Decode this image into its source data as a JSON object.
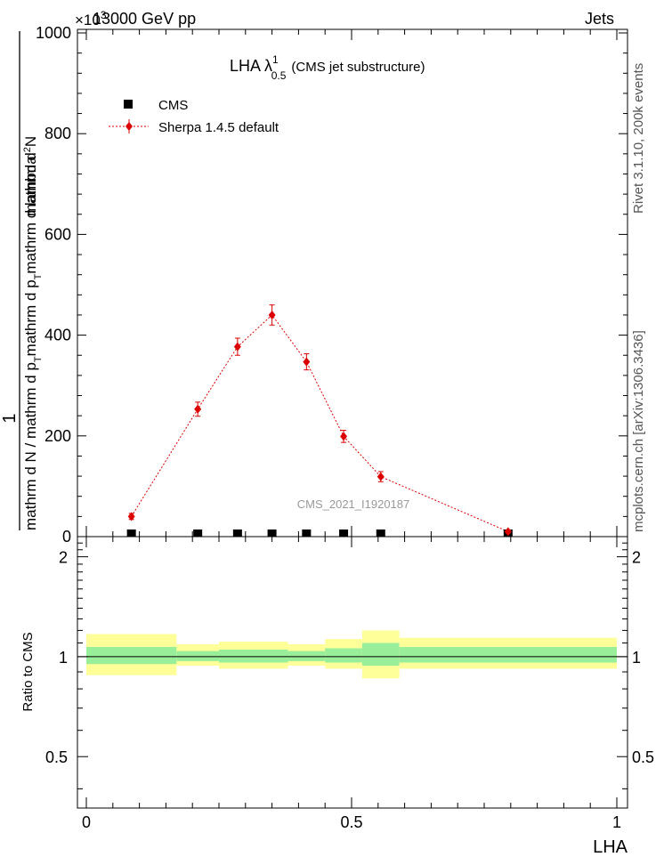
{
  "header": {
    "energy_label": "13000 GeV pp",
    "process_label": "Jets",
    "exponent_label": "×10",
    "exponent_power": "3"
  },
  "side_labels": {
    "rivet": "Rivet 3.1.10,  200k events",
    "mcplots": "mcplots.cern.ch [arXiv:1306.3436]"
  },
  "watermark": "CMS_2021_I1920187",
  "chart_data": [
    {
      "type": "scatter",
      "title_main": "LHA λ",
      "title_sup": "1",
      "title_sub": "0.5",
      "title_suffix": "(CMS jet substructure)",
      "ylabel_num": "1",
      "ylabel_den": "mathrm d N / mathrm d p_T mathrm d p_T mathrm d lambda",
      "ylabel_top": "mathrm d²N",
      "ylabel_den_text": "mathrm d N / mathrm d p",
      "ylabel_den_sub1": "T",
      "ylabel_den_mid": "mathrm d p",
      "ylabel_den_sub2": "T",
      "ylabel_den_end": "mathrm d lambda",
      "ylim": [
        0,
        1000
      ],
      "yticks": [
        0,
        200,
        400,
        600,
        800,
        1000
      ],
      "xlim": [
        0,
        1
      ],
      "legend": [
        {
          "label": "CMS",
          "color": "#000000",
          "marker": "square"
        },
        {
          "label": "Sherpa 1.4.5 default",
          "color": "#dd0000",
          "marker": "diamond"
        }
      ],
      "series": [
        {
          "name": "CMS",
          "x": [
            0.085,
            0.21,
            0.285,
            0.35,
            0.415,
            0.485,
            0.555,
            0.795
          ],
          "y": [
            1,
            1,
            1,
            1,
            1,
            1,
            1,
            1
          ]
        },
        {
          "name": "Sherpa 1.4.5 default",
          "x": [
            0.085,
            0.21,
            0.285,
            0.35,
            0.415,
            0.485,
            0.555,
            0.795
          ],
          "y": [
            40,
            253,
            377,
            440,
            347,
            199,
            119,
            10
          ],
          "yerr": [
            6,
            14,
            17,
            20,
            16,
            12,
            10,
            3
          ]
        }
      ]
    },
    {
      "type": "area",
      "ylabel": "Ratio to CMS",
      "xlabel": "LHA",
      "ylim": [
        0.35,
        2.3
      ],
      "yticks": [
        0.5,
        1,
        2
      ],
      "ytick_labels": [
        "0.5",
        "1",
        "2"
      ],
      "xticks": [
        0,
        0.5,
        1
      ],
      "xtick_labels": [
        "0",
        "0.5",
        "1"
      ],
      "bands": [
        {
          "x0": 0.0,
          "x1": 0.17,
          "inner": [
            0.95,
            1.07
          ],
          "outer": [
            0.88,
            1.17
          ]
        },
        {
          "x0": 0.17,
          "x1": 0.25,
          "inner": [
            0.97,
            1.04
          ],
          "outer": [
            0.94,
            1.09
          ]
        },
        {
          "x0": 0.25,
          "x1": 0.38,
          "inner": [
            0.96,
            1.05
          ],
          "outer": [
            0.92,
            1.11
          ]
        },
        {
          "x0": 0.38,
          "x1": 0.45,
          "inner": [
            0.97,
            1.04
          ],
          "outer": [
            0.94,
            1.09
          ]
        },
        {
          "x0": 0.45,
          "x1": 0.52,
          "inner": [
            0.96,
            1.06
          ],
          "outer": [
            0.92,
            1.13
          ]
        },
        {
          "x0": 0.52,
          "x1": 0.59,
          "inner": [
            0.94,
            1.1
          ],
          "outer": [
            0.86,
            1.2
          ]
        },
        {
          "x0": 0.59,
          "x1": 1.0,
          "inner": [
            0.96,
            1.07
          ],
          "outer": [
            0.92,
            1.14
          ]
        }
      ],
      "colors": {
        "inner": "#99ee99",
        "outer": "#ffff99"
      }
    }
  ]
}
